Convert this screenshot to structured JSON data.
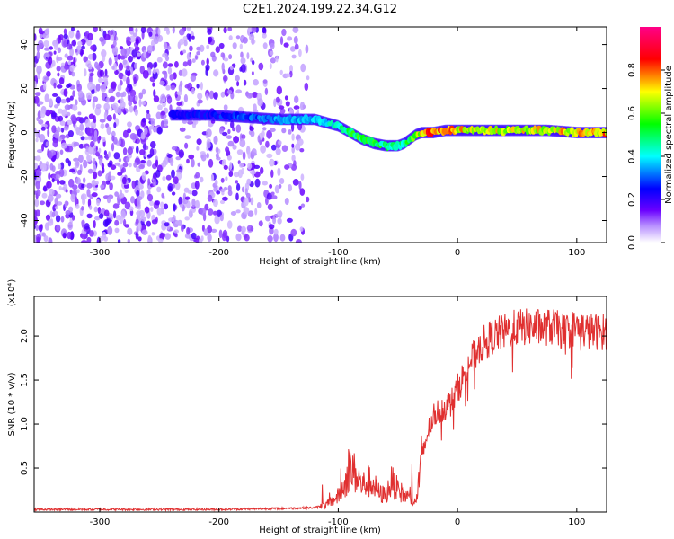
{
  "title": "C2E1.2024.199.22.34.G12",
  "chart_data": [
    {
      "type": "heatmap",
      "xlabel": "Height of straight line (km)",
      "ylabel": "Frequency (Hz)",
      "xlim": [
        -355,
        125
      ],
      "ylim": [
        -50,
        48
      ],
      "xticks": [
        -300,
        -200,
        -100,
        0,
        100
      ],
      "yticks": [
        -40,
        -20,
        0,
        20,
        40
      ],
      "colorbar": {
        "label": "Normalized spectral amplitude",
        "range": [
          0.0,
          1.0
        ],
        "ticks": [
          "0.0",
          "0.2",
          "0.4",
          "0.6",
          "0.8"
        ],
        "colors": [
          "#ffffff",
          "#6a00ff",
          "#0000ff",
          "#00ffff",
          "#00ff00",
          "#ffff00",
          "#ff0000",
          "#ff0088"
        ]
      },
      "ridge": {
        "x": [
          -240,
          -210,
          -180,
          -150,
          -120,
          -100,
          -90,
          -80,
          -70,
          -60,
          -50,
          -45,
          -40,
          -35,
          -30,
          -20,
          -10,
          0,
          25,
          50,
          75,
          100,
          125
        ],
        "y": [
          8,
          8,
          7,
          6,
          6,
          3,
          0,
          -3,
          -5,
          -6,
          -6,
          -5,
          -3,
          -1,
          0,
          0,
          1,
          1,
          1,
          1,
          1,
          0,
          0
        ],
        "amplitude": [
          0.25,
          0.25,
          0.3,
          0.35,
          0.4,
          0.45,
          0.55,
          0.55,
          0.55,
          0.5,
          0.45,
          0.5,
          0.55,
          0.6,
          0.75,
          0.85,
          0.8,
          0.75,
          0.7,
          0.7,
          0.7,
          0.75,
          0.8
        ]
      }
    },
    {
      "type": "line",
      "xlabel": "Height of straight line (km)",
      "ylabel": "SNR (10 * v/v)",
      "y_multiplier_label": "(x10⁴)",
      "xlim": [
        -355,
        125
      ],
      "ylim": [
        0,
        2.45
      ],
      "xticks": [
        -300,
        -200,
        -100,
        0,
        100
      ],
      "yticks": [
        0.5,
        1.0,
        1.5,
        2.0
      ],
      "color": "#e03030",
      "series": [
        {
          "x": [
            -355,
            -300,
            -250,
            -200,
            -150,
            -120,
            -110,
            -100,
            -95,
            -90,
            -85,
            -80,
            -75,
            -70,
            -65,
            -60,
            -55,
            -50,
            -45,
            -40,
            -35,
            -30,
            -25,
            -20,
            -15,
            -10,
            -5,
            0,
            10,
            20,
            30,
            40,
            50,
            60,
            70,
            80,
            90,
            100,
            110,
            125
          ],
          "y": [
            0.03,
            0.03,
            0.03,
            0.03,
            0.04,
            0.05,
            0.08,
            0.18,
            0.3,
            0.5,
            0.42,
            0.3,
            0.35,
            0.3,
            0.2,
            0.2,
            0.35,
            0.25,
            0.2,
            0.15,
            0.1,
            0.6,
            0.9,
            1.1,
            1.15,
            1.2,
            1.25,
            1.4,
            1.7,
            1.9,
            2.0,
            2.05,
            2.1,
            2.1,
            2.1,
            2.1,
            2.05,
            2.1,
            2.05,
            2.05
          ]
        }
      ]
    }
  ]
}
